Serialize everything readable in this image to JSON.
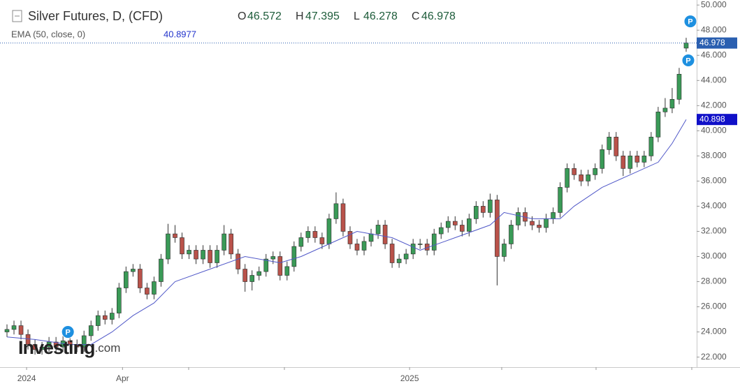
{
  "chart_data": {
    "type": "candlestick",
    "title": "Silver Futures, D, (CFD)",
    "ohlc_labels": [
      "O",
      "H",
      "L",
      "C"
    ],
    "open": [
      24.0,
      24.2,
      24.5,
      23.8,
      23.0,
      22.6,
      22.8,
      23.2,
      22.8,
      23.3,
      23.0,
      22.8,
      23.7,
      24.5,
      25.3,
      25.0,
      25.5,
      27.5,
      28.8,
      29.0,
      27.5,
      27.0,
      28.0,
      29.8,
      31.8,
      31.5,
      30.2,
      30.5,
      29.8,
      30.5,
      29.5,
      30.5,
      31.8,
      30.2,
      29.0,
      28.0,
      28.5,
      28.8,
      29.8,
      30.0,
      28.5,
      29.2,
      30.8,
      31.5,
      32.0,
      31.5,
      31.0,
      33.0,
      34.2,
      32.0,
      31.0,
      30.5,
      31.2,
      31.8,
      32.5,
      31.0,
      29.5,
      29.8,
      30.2,
      31.0,
      31.0,
      30.5,
      31.8,
      32.3,
      32.8,
      32.5,
      32.0,
      33.0,
      34.0,
      33.5,
      34.5,
      30.0,
      31.0,
      32.5,
      33.5,
      32.8,
      32.5,
      32.3,
      33.0,
      33.5,
      35.5,
      37.0,
      36.5,
      36.0,
      36.5,
      37.0,
      38.5,
      39.5,
      38.0,
      37.0,
      38.0,
      37.5,
      38.0,
      39.5,
      41.5,
      41.8,
      42.5,
      46.572
    ],
    "high": [
      24.6,
      24.9,
      24.9,
      24.2,
      23.4,
      23.2,
      23.6,
      23.6,
      23.7,
      23.7,
      23.4,
      24.1,
      24.9,
      25.7,
      25.7,
      25.9,
      27.9,
      29.2,
      29.4,
      29.4,
      27.9,
      28.4,
      30.2,
      32.6,
      32.5,
      31.9,
      30.9,
      30.9,
      30.9,
      30.9,
      30.9,
      32.5,
      32.2,
      30.6,
      29.4,
      28.9,
      29.2,
      30.2,
      30.4,
      30.4,
      29.6,
      31.2,
      31.9,
      32.4,
      32.4,
      31.9,
      33.4,
      35.1,
      34.6,
      32.4,
      31.4,
      31.6,
      32.2,
      32.9,
      32.9,
      31.4,
      30.2,
      30.6,
      31.4,
      31.4,
      31.4,
      32.2,
      32.7,
      33.2,
      33.2,
      32.9,
      33.4,
      34.4,
      34.4,
      35.0,
      34.9,
      31.4,
      32.9,
      33.9,
      33.9,
      33.2,
      32.9,
      33.4,
      33.9,
      35.9,
      37.4,
      37.4,
      36.9,
      36.9,
      37.4,
      38.9,
      39.9,
      39.9,
      38.4,
      38.4,
      38.4,
      38.4,
      39.9,
      41.9,
      42.6,
      43.4,
      45.0,
      47.395
    ],
    "low": [
      23.6,
      23.8,
      23.4,
      22.6,
      22.2,
      22.2,
      22.4,
      22.4,
      22.4,
      22.6,
      22.4,
      22.4,
      23.3,
      24.1,
      24.6,
      24.6,
      25.1,
      27.1,
      28.4,
      27.1,
      26.6,
      26.6,
      27.6,
      29.4,
      31.1,
      29.8,
      29.8,
      29.4,
      29.4,
      29.1,
      29.1,
      30.1,
      29.8,
      28.6,
      27.2,
      27.3,
      28.1,
      28.4,
      29.4,
      28.1,
      28.1,
      28.8,
      30.4,
      31.1,
      31.1,
      30.6,
      30.6,
      32.6,
      31.6,
      30.6,
      30.1,
      30.1,
      30.8,
      31.4,
      30.6,
      29.1,
      29.1,
      29.4,
      29.8,
      30.6,
      30.1,
      30.1,
      31.4,
      31.9,
      32.1,
      31.6,
      31.6,
      32.6,
      33.1,
      33.1,
      27.7,
      29.6,
      30.6,
      32.1,
      32.4,
      32.1,
      31.9,
      31.9,
      32.6,
      33.1,
      35.1,
      36.1,
      35.6,
      35.6,
      36.1,
      36.6,
      38.1,
      37.6,
      36.4,
      36.6,
      37.1,
      37.1,
      37.6,
      39.1,
      41.1,
      41.4,
      42.1,
      46.278
    ],
    "close": [
      24.2,
      24.5,
      23.8,
      23.0,
      22.6,
      22.8,
      23.2,
      22.8,
      23.3,
      23.0,
      22.8,
      23.7,
      24.5,
      25.3,
      25.0,
      25.5,
      27.5,
      28.8,
      29.0,
      27.5,
      27.0,
      28.0,
      29.8,
      31.8,
      31.5,
      30.2,
      30.5,
      29.8,
      30.5,
      29.5,
      30.5,
      31.8,
      30.2,
      29.0,
      28.0,
      28.5,
      28.8,
      29.8,
      30.0,
      28.5,
      29.2,
      30.8,
      31.5,
      32.0,
      31.5,
      31.0,
      33.0,
      34.2,
      32.0,
      31.0,
      30.5,
      31.2,
      31.8,
      32.5,
      31.0,
      29.5,
      29.8,
      30.2,
      31.0,
      31.0,
      30.5,
      31.8,
      32.3,
      32.8,
      32.5,
      32.0,
      33.0,
      34.0,
      33.5,
      34.5,
      30.0,
      31.0,
      32.5,
      33.5,
      32.8,
      32.5,
      32.3,
      33.0,
      33.5,
      35.5,
      37.0,
      36.5,
      36.0,
      36.5,
      37.0,
      38.5,
      39.5,
      38.0,
      37.0,
      38.0,
      37.5,
      38.0,
      39.5,
      41.5,
      41.8,
      42.5,
      44.5,
      46.978
    ],
    "up_color": "#3a9a57",
    "down_color": "#b9524a",
    "ema": {
      "name": "EMA (50, close, 0)",
      "color": "#5058c8",
      "x": [
        0,
        4,
        9,
        12,
        15,
        18,
        21,
        24,
        29,
        34,
        39,
        42,
        46,
        50,
        55,
        59,
        64,
        69,
        71,
        75,
        79,
        81,
        85,
        89,
        93,
        95,
        97
      ],
      "values": [
        23.6,
        23.4,
        23.0,
        23.0,
        24.0,
        25.3,
        26.3,
        28.0,
        29.0,
        30.0,
        29.5,
        30.0,
        31.0,
        32.0,
        31.5,
        30.5,
        31.5,
        32.5,
        33.5,
        33.0,
        33.0,
        34.0,
        35.5,
        36.5,
        37.5,
        39.0,
        40.8977
      ],
      "last_label": "40.898"
    },
    "ylim": [
      21.2,
      50.4
    ],
    "yticks": [
      {
        "value": 22,
        "label": "22.000"
      },
      {
        "value": 24,
        "label": "24.000"
      },
      {
        "value": 26,
        "label": "26.000"
      },
      {
        "value": 28,
        "label": "28.000"
      },
      {
        "value": 30,
        "label": "30.000"
      },
      {
        "value": 32,
        "label": "32.000"
      },
      {
        "value": 34,
        "label": "34.000"
      },
      {
        "value": 36,
        "label": "36.000"
      },
      {
        "value": 38,
        "label": "38.000"
      },
      {
        "value": 40,
        "label": "40.000"
      },
      {
        "value": 42,
        "label": "42.000"
      },
      {
        "value": 44,
        "label": "44.000"
      },
      {
        "value": 46,
        "label": "46.000"
      },
      {
        "value": 48,
        "label": "48.000"
      },
      {
        "value": 50,
        "label": "50.000"
      }
    ],
    "xlim": [
      0,
      98.5
    ],
    "xticks": [
      {
        "value": 2.8,
        "label": "2024"
      },
      {
        "value": 16.5,
        "label": "Apr"
      },
      {
        "value": 57.5,
        "label": "2025"
      }
    ],
    "annotations": [
      {
        "x": 8.7,
        "y": 24.0,
        "label": "P"
      },
      {
        "x": 97.3,
        "y": 45.6,
        "label": "P"
      },
      {
        "x": 97.6,
        "y": 48.7,
        "label": "P"
      }
    ],
    "watermark": "Investing",
    "watermark_suffix": ".com",
    "grid": false
  }
}
